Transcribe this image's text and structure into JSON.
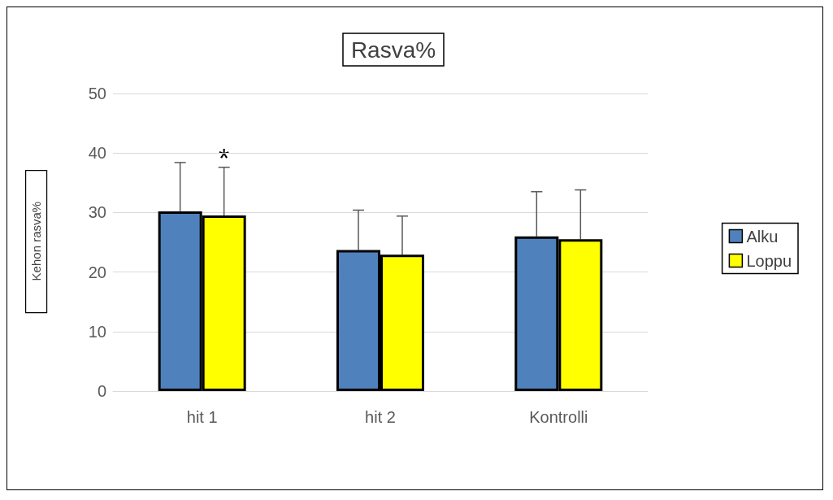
{
  "chart_data": {
    "type": "bar",
    "title": "Rasva%",
    "ylabel": "Kehon rasva%",
    "categories": [
      "hit 1",
      "hit 2",
      "Kontrolli"
    ],
    "series": [
      {
        "name": "Alku",
        "color": "#4f81bd",
        "values": [
          30.2,
          23.7,
          26.0
        ],
        "errors": [
          [
            30.2,
            38.4
          ],
          [
            23.7,
            30.4
          ],
          [
            26.0,
            33.5
          ]
        ]
      },
      {
        "name": "Loppu",
        "color": "#ffff00",
        "values": [
          29.5,
          22.9,
          25.5
        ],
        "errors": [
          [
            29.5,
            37.6
          ],
          [
            22.9,
            29.4
          ],
          [
            25.5,
            33.8
          ]
        ]
      }
    ],
    "ylim": [
      0,
      50
    ],
    "yticks": [
      0,
      10,
      20,
      30,
      40,
      50
    ],
    "grid": "y",
    "legend": "right",
    "annotations": [
      "*"
    ]
  }
}
